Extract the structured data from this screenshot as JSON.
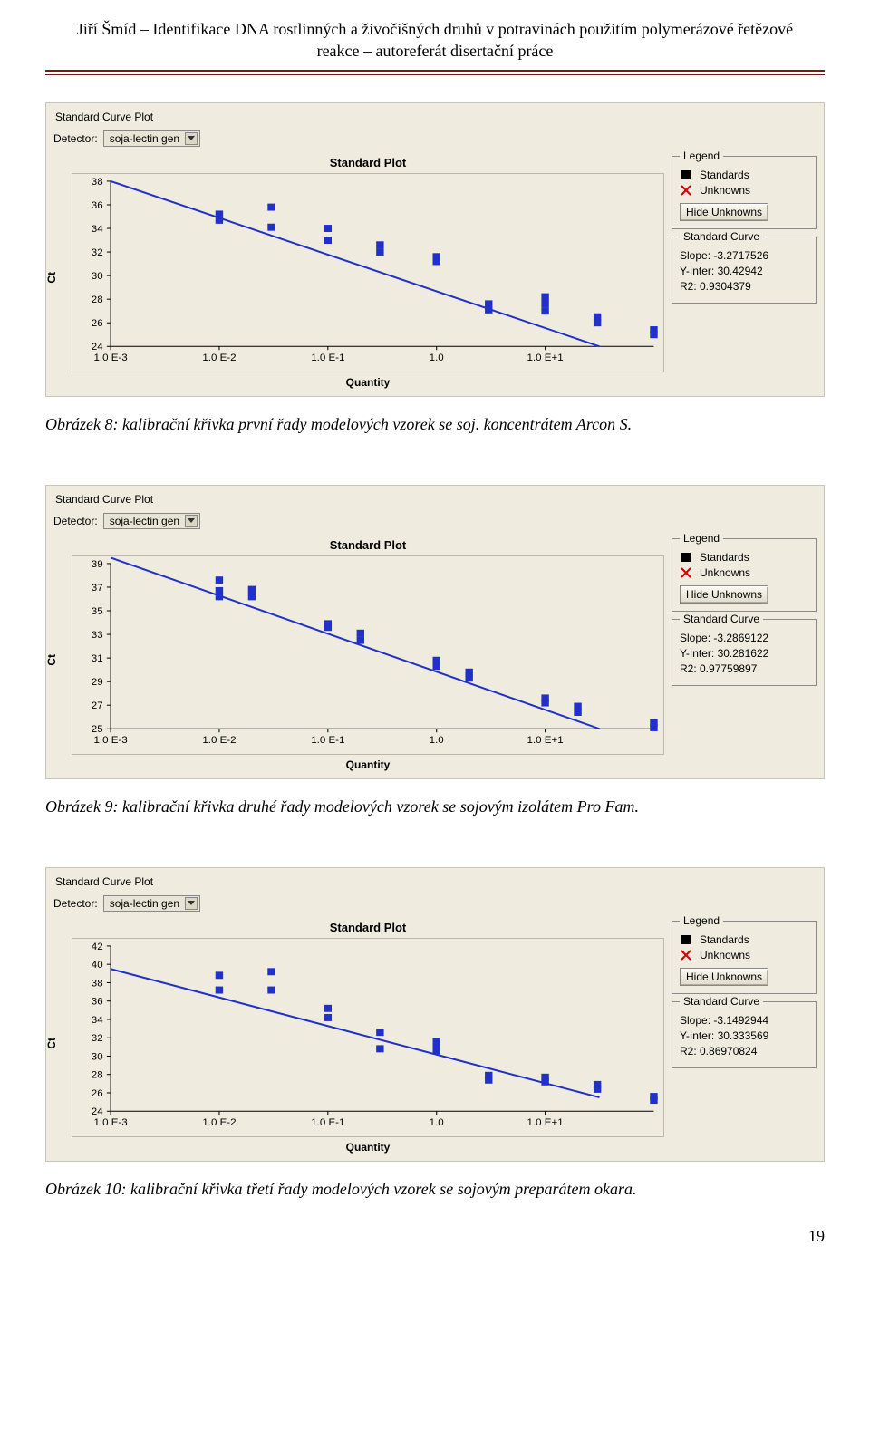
{
  "header": {
    "line1": "Jiří Šmíd – Identifikace DNA rostlinných a živočišných druhů v potravinách použitím polymerázové řetězové",
    "line2": "reakce – autoreferát disertační práce"
  },
  "page_number": "19",
  "captions": {
    "fig8": "Obrázek 8: kalibrační křivka první řady modelových vzorek se soj. koncentrátem Arcon S.",
    "fig9": "Obrázek 9: kalibrační křivka druhé řady modelových vzorek se sojovým izolátem Pro Fam.",
    "fig10": "Obrázek 10: kalibrační křivka třetí řady modelových vzorek se sojovým preparátem okara."
  },
  "panels": {
    "common": {
      "panel_title": "Standard Curve Plot",
      "detector_label": "Detector:",
      "detector_value": "soja-lectin gen",
      "plot_title": "Standard Plot",
      "xlabel": "Quantity",
      "ylabel": "Ct",
      "legend_title": "Legend",
      "legend_items": [
        {
          "symbol": "square",
          "color": "#000000",
          "label": "Standards"
        },
        {
          "symbol": "cross",
          "color": "#d00000",
          "label": "Unknowns"
        }
      ],
      "hide_button": "Hide Unknowns",
      "curve_title": "Standard Curve",
      "x_ticks": [
        {
          "log10": -3,
          "label": "1.0 E-3"
        },
        {
          "log10": -2,
          "label": "1.0 E-2"
        },
        {
          "log10": -1,
          "label": "1.0 E-1"
        },
        {
          "log10": 0,
          "label": "1.0"
        },
        {
          "log10": 1,
          "label": "1.0 E+1"
        }
      ],
      "style": {
        "line_color": "#2030c8",
        "marker_color": "#2030c8",
        "marker_size": 8,
        "line_width": 2,
        "bg": "#efebdf",
        "font_axis": 11
      }
    },
    "p8": {
      "y_ticks": [
        24,
        26,
        28,
        30,
        32,
        34,
        36,
        38
      ],
      "y_lim": [
        24,
        38
      ],
      "stats": {
        "slope": "Slope: -3.2717526",
        "yint": "Y-Inter: 30.42942",
        "r2": "R2: 0.9304379"
      },
      "line": {
        "x0": -3.0,
        "y0": 38.0,
        "x1": 1.5,
        "y1": 24.0
      },
      "points": [
        {
          "x": -2.0,
          "y": 35.2
        },
        {
          "x": -2.0,
          "y": 34.7
        },
        {
          "x": -1.52,
          "y": 35.8
        },
        {
          "x": -1.52,
          "y": 34.1
        },
        {
          "x": -1.0,
          "y": 34.0
        },
        {
          "x": -1.0,
          "y": 33.0
        },
        {
          "x": -0.52,
          "y": 32.0
        },
        {
          "x": -0.52,
          "y": 32.6
        },
        {
          "x": 0.0,
          "y": 31.2
        },
        {
          "x": 0.0,
          "y": 31.6
        },
        {
          "x": 0.48,
          "y": 27.6
        },
        {
          "x": 0.48,
          "y": 27.1
        },
        {
          "x": 1.0,
          "y": 27.0
        },
        {
          "x": 1.0,
          "y": 28.2
        },
        {
          "x": 1.0,
          "y": 27.6
        },
        {
          "x": 1.48,
          "y": 26.5
        },
        {
          "x": 1.48,
          "y": 26.0
        },
        {
          "x": 2.0,
          "y": 25.4
        },
        {
          "x": 2.0,
          "y": 25.0
        }
      ]
    },
    "p9": {
      "y_ticks": [
        25,
        27,
        29,
        31,
        33,
        35,
        37,
        39
      ],
      "y_lim": [
        25,
        39
      ],
      "stats": {
        "slope": "Slope: -3.2869122",
        "yint": "Y-Inter: 30.281622",
        "r2": "R2: 0.97759897"
      },
      "line": {
        "x0": -3.0,
        "y0": 39.5,
        "x1": 1.5,
        "y1": 25.0
      },
      "points": [
        {
          "x": -2.0,
          "y": 36.2
        },
        {
          "x": -2.0,
          "y": 36.7
        },
        {
          "x": -2.0,
          "y": 37.6
        },
        {
          "x": -1.7,
          "y": 36.2
        },
        {
          "x": -1.7,
          "y": 36.8
        },
        {
          "x": -1.0,
          "y": 33.6
        },
        {
          "x": -1.0,
          "y": 33.9
        },
        {
          "x": -0.7,
          "y": 33.1
        },
        {
          "x": -0.7,
          "y": 32.5
        },
        {
          "x": 0.0,
          "y": 30.3
        },
        {
          "x": 0.0,
          "y": 30.8
        },
        {
          "x": 0.3,
          "y": 29.3
        },
        {
          "x": 0.3,
          "y": 29.8
        },
        {
          "x": 1.0,
          "y": 27.2
        },
        {
          "x": 1.0,
          "y": 27.6
        },
        {
          "x": 1.3,
          "y": 26.4
        },
        {
          "x": 1.3,
          "y": 26.9
        },
        {
          "x": 2.0,
          "y": 25.1
        },
        {
          "x": 2.0,
          "y": 25.5
        }
      ]
    },
    "p10": {
      "y_ticks": [
        24,
        26,
        28,
        30,
        32,
        34,
        36,
        38,
        40,
        42
      ],
      "y_lim": [
        24,
        42
      ],
      "stats": {
        "slope": "Slope: -3.1492944",
        "yint": "Y-Inter: 30.333569",
        "r2": "R2: 0.86970824"
      },
      "line": {
        "x0": -3.0,
        "y0": 39.5,
        "x1": 1.5,
        "y1": 25.5
      },
      "points": [
        {
          "x": -2.0,
          "y": 38.8
        },
        {
          "x": -2.0,
          "y": 37.2
        },
        {
          "x": -1.52,
          "y": 39.2
        },
        {
          "x": -1.52,
          "y": 37.2
        },
        {
          "x": -1.0,
          "y": 35.2
        },
        {
          "x": -1.0,
          "y": 34.2
        },
        {
          "x": -0.52,
          "y": 32.6
        },
        {
          "x": -0.52,
          "y": 30.8
        },
        {
          "x": 0.0,
          "y": 31.6
        },
        {
          "x": 0.0,
          "y": 30.6
        },
        {
          "x": 0.0,
          "y": 31.0
        },
        {
          "x": 0.48,
          "y": 27.4
        },
        {
          "x": 0.48,
          "y": 27.9
        },
        {
          "x": 1.0,
          "y": 27.2
        },
        {
          "x": 1.0,
          "y": 27.7
        },
        {
          "x": 1.48,
          "y": 26.4
        },
        {
          "x": 1.48,
          "y": 26.9
        },
        {
          "x": 2.0,
          "y": 25.2
        },
        {
          "x": 2.0,
          "y": 25.6
        }
      ]
    }
  }
}
